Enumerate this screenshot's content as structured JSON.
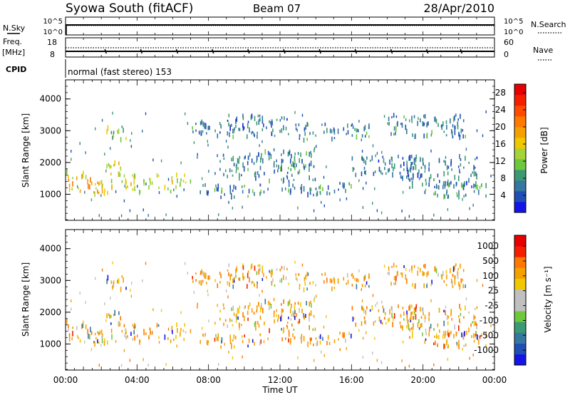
{
  "header": {
    "station": "Syowa South (fitACF)",
    "beam": "Beam 07",
    "date": "28/Apr/2010"
  },
  "aux_panels": {
    "nsky_label": "N.Sky",
    "nsky_ticks": [
      "10^5",
      "10^0"
    ],
    "nsearch_label": "N.Search",
    "nsearch_ticks": [
      "10^5",
      "10^0"
    ],
    "freq_label_top": "Freq.",
    "freq_label_bottom": "[MHz]",
    "freq_ticks": [
      "18",
      "8"
    ],
    "nave_label": "Nave",
    "nave_ticks": [
      "60",
      "0"
    ],
    "cpid_label": "CPID",
    "cpid_text": "normal (fast stereo) 153"
  },
  "chart_data": [
    {
      "type": "heatmap",
      "name": "power",
      "xlabel": "",
      "ylabel": "Slant Range [km]",
      "x_ticks": [
        "00:00",
        "04:00",
        "08:00",
        "12:00",
        "16:00",
        "20:00",
        "00:00"
      ],
      "x_range_hours": [
        0,
        24
      ],
      "y_ticks": [
        1000,
        2000,
        3000,
        4000
      ],
      "y_range_km": [
        180,
        4600
      ],
      "colorbar": {
        "label": "Power [dB]",
        "ticks": [
          4,
          8,
          12,
          16,
          20,
          24,
          28
        ],
        "range": [
          0,
          30
        ],
        "colors": [
          "#1414e6",
          "#1f4fb4",
          "#3577a0",
          "#3c9a73",
          "#6ec83c",
          "#a6d23a",
          "#f0c800",
          "#f5a000",
          "#ff7800",
          "#ff4a00",
          "#f51e00",
          "#e60000"
        ]
      },
      "echo_regions": [
        {
          "t": [
            0.0,
            2.2
          ],
          "r": [
            1000,
            1500
          ],
          "level": 18
        },
        {
          "t": [
            0.0,
            1.4
          ],
          "r": [
            1500,
            1750
          ],
          "level": 16
        },
        {
          "t": [
            1.5,
            2.6
          ],
          "r": [
            1000,
            1250
          ],
          "level": 15
        },
        {
          "t": [
            2.2,
            3.4
          ],
          "r": [
            2700,
            3200
          ],
          "level": 13
        },
        {
          "t": [
            2.2,
            3.4
          ],
          "r": [
            1800,
            2100
          ],
          "level": 14
        },
        {
          "t": [
            2.5,
            7.0
          ],
          "r": [
            1300,
            1650
          ],
          "level": 14
        },
        {
          "t": [
            3.0,
            6.5
          ],
          "r": [
            1050,
            1250
          ],
          "level": 13
        },
        {
          "t": [
            7.0,
            9.5
          ],
          "r": [
            2800,
            3300
          ],
          "level": 7
        },
        {
          "t": [
            7.5,
            11.0
          ],
          "r": [
            900,
            1300
          ],
          "level": 7
        },
        {
          "t": [
            8.5,
            11.0
          ],
          "r": [
            1500,
            2300
          ],
          "level": 7
        },
        {
          "t": [
            9.0,
            12.5
          ],
          "r": [
            2800,
            3500
          ],
          "level": 6
        },
        {
          "t": [
            11.0,
            14.0
          ],
          "r": [
            1400,
            2400
          ],
          "level": 7
        },
        {
          "t": [
            12.0,
            16.0
          ],
          "r": [
            950,
            1350
          ],
          "level": 7
        },
        {
          "t": [
            13.0,
            17.0
          ],
          "r": [
            2700,
            3200
          ],
          "level": 7
        },
        {
          "t": [
            16.0,
            20.0
          ],
          "r": [
            1500,
            2200
          ],
          "level": 6
        },
        {
          "t": [
            18.0,
            22.5
          ],
          "r": [
            2800,
            3500
          ],
          "level": 7
        },
        {
          "t": [
            19.0,
            23.0
          ],
          "r": [
            1200,
            2200
          ],
          "level": 6
        },
        {
          "t": [
            20.0,
            23.5
          ],
          "r": [
            900,
            1300
          ],
          "level": 8
        }
      ]
    },
    {
      "type": "heatmap",
      "name": "velocity",
      "xlabel": "Time UT",
      "ylabel": "Slant Range [km]",
      "x_ticks": [
        "00:00",
        "04:00",
        "08:00",
        "12:00",
        "16:00",
        "20:00",
        "00:00"
      ],
      "x_range_hours": [
        0,
        24
      ],
      "y_ticks": [
        1000,
        2000,
        3000,
        4000
      ],
      "y_range_km": [
        180,
        4600
      ],
      "colorbar": {
        "label": "Velocity [m s⁻¹]",
        "ticks": [
          "1000",
          "500",
          "100",
          "25",
          "-25",
          "-100",
          "-500",
          "-1000"
        ],
        "colors": [
          "#1414e6",
          "#1f4fb4",
          "#3577a0",
          "#3c9a73",
          "#6ec83c",
          "#c0c0c0",
          "#c0c0c0",
          "#f0c800",
          "#f5a000",
          "#ff7800",
          "#f51e00",
          "#e60000"
        ]
      },
      "echo_regions": [
        {
          "t": [
            0.0,
            2.2
          ],
          "r": [
            1000,
            1500
          ]
        },
        {
          "t": [
            0.0,
            1.4
          ],
          "r": [
            1500,
            1750
          ]
        },
        {
          "t": [
            1.5,
            2.6
          ],
          "r": [
            1000,
            1250
          ]
        },
        {
          "t": [
            2.2,
            3.4
          ],
          "r": [
            2700,
            3200
          ]
        },
        {
          "t": [
            2.2,
            3.4
          ],
          "r": [
            1800,
            2100
          ]
        },
        {
          "t": [
            2.5,
            7.0
          ],
          "r": [
            1300,
            1650
          ]
        },
        {
          "t": [
            3.0,
            6.5
          ],
          "r": [
            1050,
            1250
          ]
        },
        {
          "t": [
            7.0,
            9.5
          ],
          "r": [
            2800,
            3300
          ]
        },
        {
          "t": [
            7.5,
            11.0
          ],
          "r": [
            900,
            1300
          ]
        },
        {
          "t": [
            8.5,
            11.0
          ],
          "r": [
            1500,
            2300
          ]
        },
        {
          "t": [
            9.0,
            12.5
          ],
          "r": [
            2800,
            3500
          ]
        },
        {
          "t": [
            11.0,
            14.0
          ],
          "r": [
            1400,
            2400
          ]
        },
        {
          "t": [
            12.0,
            16.0
          ],
          "r": [
            950,
            1350
          ]
        },
        {
          "t": [
            13.0,
            17.0
          ],
          "r": [
            2700,
            3200
          ]
        },
        {
          "t": [
            16.0,
            20.0
          ],
          "r": [
            1500,
            2200
          ]
        },
        {
          "t": [
            18.0,
            22.5
          ],
          "r": [
            2800,
            3500
          ]
        },
        {
          "t": [
            19.0,
            23.0
          ],
          "r": [
            1200,
            2200
          ]
        },
        {
          "t": [
            20.0,
            23.5
          ],
          "r": [
            900,
            1300
          ]
        }
      ]
    }
  ]
}
